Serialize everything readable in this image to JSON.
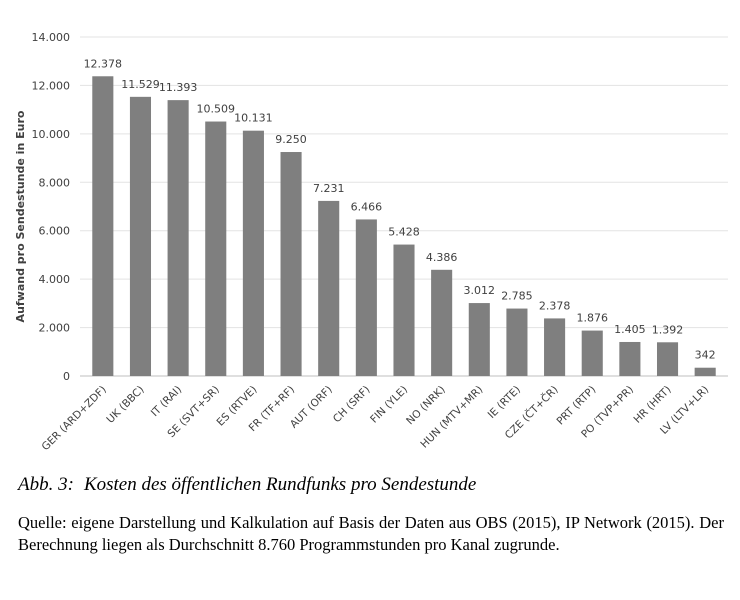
{
  "chart_data": {
    "type": "bar",
    "title": "",
    "xlabel": "",
    "ylabel": "Aufwand pro Sendestunde in Euro",
    "ylim": [
      0,
      14000
    ],
    "yticks": [
      0,
      2000,
      4000,
      6000,
      8000,
      10000,
      12000,
      14000
    ],
    "ytick_labels": [
      "0",
      "2.000",
      "4.000",
      "6.000",
      "8.000",
      "10.000",
      "12.000",
      "14.000"
    ],
    "grid": true,
    "legend": "none",
    "bar_color": "#7f7f7f",
    "categories": [
      "GER (ARD+ZDF)",
      "UK (BBC)",
      "IT (RAI)",
      "SE (SVT+SR)",
      "ES (RTVE)",
      "FR (TF+RF)",
      "AUT (ORF)",
      "CH (SRF)",
      "FIN (YLE)",
      "NO (NRK)",
      "HUN (MTV+MR)",
      "IE (RTE)",
      "CZE (ČT+ČR)",
      "PRT (RTP)",
      "PO (TVP+PR)",
      "HR (HRT)",
      "LV (LTV+LR)"
    ],
    "values": [
      12378,
      11529,
      11393,
      10509,
      10131,
      9250,
      7231,
      6466,
      5428,
      4386,
      3012,
      2785,
      2378,
      1876,
      1405,
      1392,
      342
    ],
    "value_labels": [
      "12.378",
      "11.529",
      "11.393",
      "10.509",
      "10.131",
      "9.250",
      "7.231",
      "6.466",
      "5.428",
      "4.386",
      "3.012",
      "2.785",
      "2.378",
      "1.876",
      "1.405",
      "1.392",
      "342"
    ]
  },
  "caption": {
    "label": "Abb. 3:",
    "title": "Kosten des öffentlichen Rundfunks pro Sendestunde"
  },
  "source_note": "Quelle: eigene Darstellung und Kalkulation auf Basis der Daten aus OBS (2015), IP Network (2015). Der Berechnung liegen als Durchschnitt 8.760 Programmstunden pro Kanal zugrunde."
}
